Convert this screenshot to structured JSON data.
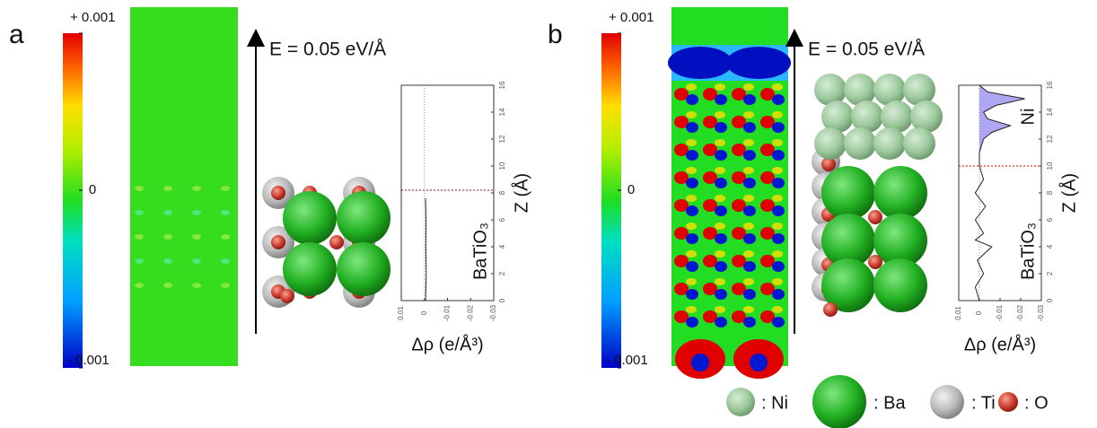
{
  "panels": [
    {
      "label": "a",
      "colorbar": {
        "max": "+ 0.001",
        "mid": "0",
        "min": "- 0.001"
      },
      "field": "E = 0.05 eV/Å",
      "plot": {
        "xlim": [
          0.01,
          -0.03
        ],
        "xticks": [
          0.01,
          0,
          -0.01,
          -0.02,
          -0.03
        ],
        "ylim": [
          0,
          16
        ],
        "yticks": [
          0,
          2,
          4,
          6,
          8,
          10,
          12,
          14,
          16
        ],
        "xlabel": "Δρ (e/Å³)",
        "ylabel": "Z (Å)",
        "region_labels": [
          "BaTiO₃"
        ],
        "interface": 8.2,
        "profile": {
          "z": [
            0,
            2,
            4,
            6,
            7.6
          ],
          "values": [
            -0.0005,
            -0.0008,
            -0.0006,
            -0.0007,
            -0.0005
          ]
        }
      }
    },
    {
      "label": "b",
      "colorbar": {
        "max": "+ 0.001",
        "mid": "0",
        "min": "- 0.001"
      },
      "field": "E = 0.05 eV/Å",
      "plot": {
        "xlim": [
          0.01,
          -0.03
        ],
        "xticks": [
          0.01,
          0,
          -0.01,
          -0.02,
          -0.03
        ],
        "ylim": [
          0,
          16
        ],
        "yticks": [
          0,
          2,
          4,
          6,
          8,
          10,
          12,
          14,
          16
        ],
        "xlabel": "Δρ (e/Å³)",
        "ylabel": "Z (Å)",
        "region_labels": [
          "BaTiO₃",
          "Ni"
        ],
        "interface": 10,
        "profile": {
          "z": [
            0,
            1,
            2,
            3,
            4,
            4.5,
            5,
            6,
            7,
            8,
            9,
            10,
            11,
            12,
            12.5,
            13,
            13.5,
            14,
            14.5,
            15,
            15.5,
            16
          ],
          "values": [
            0,
            0.002,
            -0.002,
            0.001,
            -0.006,
            0.002,
            -0.002,
            0.002,
            -0.003,
            0.002,
            -0.002,
            0,
            0,
            -0.002,
            -0.006,
            -0.015,
            -0.004,
            -0.002,
            -0.008,
            -0.022,
            -0.004,
            0
          ]
        }
      }
    }
  ],
  "legend": [
    ": Ni",
    ": Ba",
    ": Ti",
    ": O"
  ]
}
